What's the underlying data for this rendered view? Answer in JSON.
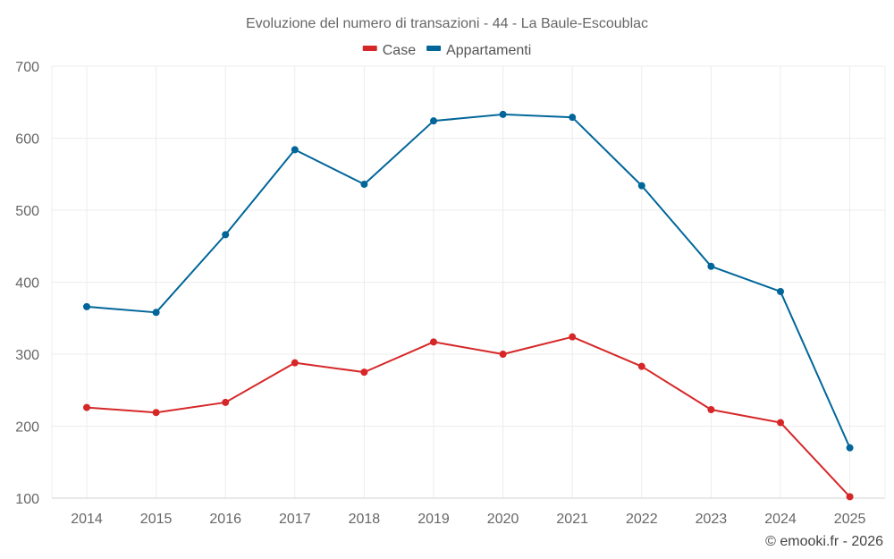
{
  "chart_data": {
    "type": "line",
    "title": "Evoluzione del numero di transazioni - 44 - La Baule-Escoublac",
    "xlabel": "",
    "ylabel": "",
    "categories": [
      "2014",
      "2015",
      "2016",
      "2017",
      "2018",
      "2019",
      "2020",
      "2021",
      "2022",
      "2023",
      "2024",
      "2025"
    ],
    "ylim": [
      100,
      700
    ],
    "yticks": [
      100,
      200,
      300,
      400,
      500,
      600,
      700
    ],
    "grid": true,
    "legend_position": "top-center",
    "series": [
      {
        "name": "Case",
        "color": "#d62728",
        "values": [
          226,
          219,
          233,
          288,
          275,
          317,
          300,
          324,
          283,
          223,
          205,
          102
        ]
      },
      {
        "name": "Appartamenti",
        "color": "#006699",
        "values": [
          366,
          358,
          466,
          584,
          536,
          624,
          633,
          629,
          534,
          422,
          387,
          170
        ]
      }
    ]
  },
  "credit": "© emooki.fr - 2026"
}
